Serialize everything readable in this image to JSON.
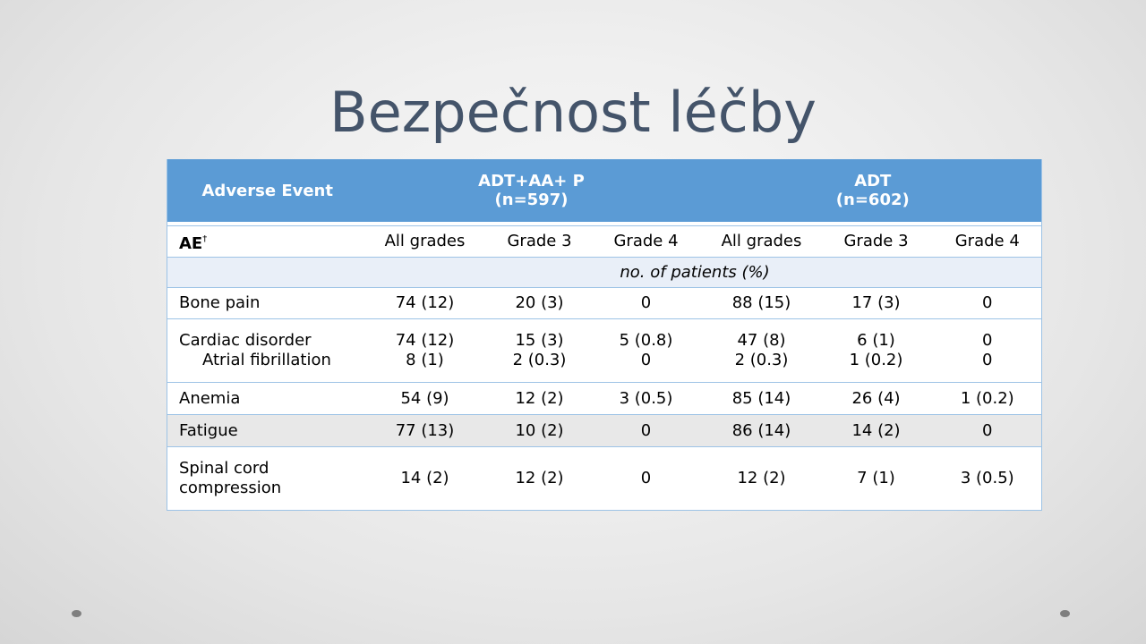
{
  "title": "Bezpečnost léčby",
  "table": {
    "header": {
      "adverse_event": "Adverse Event",
      "group1_line1": "ADT+AA+ P",
      "group1_line2": "(n=597)",
      "group2_line1": "ADT",
      "group2_line2": "(n=602)"
    },
    "subheader": {
      "ae_label": "AE",
      "ae_mark": "†",
      "cols": [
        "All grades",
        "Grade 3",
        "Grade 4",
        "All grades",
        "Grade 3",
        "Grade 4"
      ]
    },
    "units": "no. of patients (%)",
    "rows": [
      {
        "label": "Bone pain",
        "values": [
          "74 (12)",
          "20 (3)",
          "0",
          "88 (15)",
          "17 (3)",
          "0"
        ]
      },
      {
        "label": "Cardiac disorder",
        "sublabel": "Atrial fibrillation",
        "values": [
          "74 (12)",
          "15 (3)",
          "5 (0.8)",
          "47 (8)",
          "6 (1)",
          "0"
        ],
        "subvalues": [
          "8 (1)",
          "2 (0.3)",
          "0",
          "2 (0.3)",
          "1 (0.2)",
          "0"
        ]
      },
      {
        "label": "Anemia",
        "values": [
          "54 (9)",
          "12 (2)",
          "3 (0.5)",
          "85 (14)",
          "26 (4)",
          "1 (0.2)"
        ]
      },
      {
        "label": "Fatigue",
        "values": [
          "77 (13)",
          "10 (2)",
          "0",
          "86 (14)",
          "14 (2)",
          "0"
        ]
      },
      {
        "label_line1": "Spinal cord",
        "label_line2": "compression",
        "values": [
          "14 (2)",
          "12 (2)",
          "0",
          "12 (2)",
          "7 (1)",
          "3 (0.5)"
        ]
      }
    ]
  },
  "colors": {
    "title": "#44546a",
    "header_bg": "#5b9bd5",
    "units_bg": "#e9eff8",
    "fatigue_bg": "#e8e8e8",
    "border": "#9dc3e6"
  }
}
